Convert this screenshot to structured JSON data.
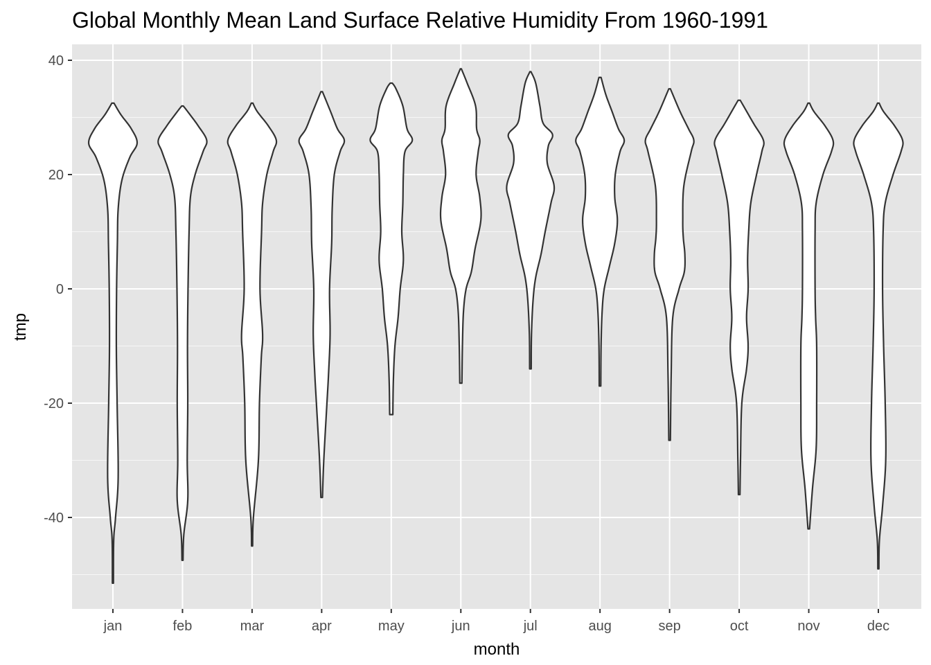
{
  "chart_data": {
    "type": "violin",
    "title": "Global Monthly Mean Land Surface Relative Humidity From 1960-1991",
    "xlabel": "month",
    "ylabel": "tmp",
    "categories": [
      "jan",
      "feb",
      "mar",
      "apr",
      "may",
      "jun",
      "jul",
      "aug",
      "sep",
      "oct",
      "nov",
      "dec"
    ],
    "ylim": [
      -55,
      40
    ],
    "yticks": [
      -40,
      -20,
      0,
      20,
      40
    ],
    "grid": true,
    "background": "#e5e5e5",
    "violin_fill": "#ffffff",
    "violin_outline": "#333333",
    "violins": [
      {
        "month": "jan",
        "min": -51.5,
        "max": 32.5,
        "widths": [
          [
            -51.5,
            0.02
          ],
          [
            -44,
            0.03
          ],
          [
            -40,
            0.1
          ],
          [
            -33,
            0.2
          ],
          [
            -20,
            0.16
          ],
          [
            -10,
            0.13
          ],
          [
            0,
            0.14
          ],
          [
            8,
            0.17
          ],
          [
            14,
            0.2
          ],
          [
            19,
            0.34
          ],
          [
            23,
            0.64
          ],
          [
            25.5,
            0.92
          ],
          [
            28,
            0.7
          ],
          [
            30.5,
            0.3
          ],
          [
            32.5,
            0.04
          ]
        ]
      },
      {
        "month": "feb",
        "min": -47.5,
        "max": 32,
        "widths": [
          [
            -47.5,
            0.02
          ],
          [
            -43,
            0.05
          ],
          [
            -37,
            0.2
          ],
          [
            -30,
            0.18
          ],
          [
            -20,
            0.2
          ],
          [
            -10,
            0.19
          ],
          [
            0,
            0.21
          ],
          [
            10,
            0.25
          ],
          [
            16,
            0.3
          ],
          [
            20,
            0.48
          ],
          [
            24,
            0.78
          ],
          [
            26,
            0.92
          ],
          [
            28.5,
            0.6
          ],
          [
            31,
            0.2
          ],
          [
            32,
            0.03
          ]
        ]
      },
      {
        "month": "mar",
        "min": -45,
        "max": 32.5,
        "widths": [
          [
            -45,
            0.02
          ],
          [
            -40,
            0.05
          ],
          [
            -30,
            0.24
          ],
          [
            -20,
            0.28
          ],
          [
            -12,
            0.35
          ],
          [
            -8,
            0.4
          ],
          [
            0,
            0.3
          ],
          [
            10,
            0.36
          ],
          [
            15,
            0.4
          ],
          [
            20,
            0.56
          ],
          [
            24,
            0.8
          ],
          [
            26,
            0.92
          ],
          [
            28.5,
            0.62
          ],
          [
            31,
            0.2
          ],
          [
            32.5,
            0.03
          ]
        ]
      },
      {
        "month": "apr",
        "min": -36.5,
        "max": 34.5,
        "widths": [
          [
            -36.5,
            0.03
          ],
          [
            -30,
            0.08
          ],
          [
            -20,
            0.2
          ],
          [
            -15,
            0.26
          ],
          [
            -8,
            0.32
          ],
          [
            0,
            0.3
          ],
          [
            8,
            0.38
          ],
          [
            14,
            0.4
          ],
          [
            20,
            0.48
          ],
          [
            24,
            0.7
          ],
          [
            26,
            0.86
          ],
          [
            28,
            0.6
          ],
          [
            31,
            0.34
          ],
          [
            34.5,
            0.03
          ]
        ]
      },
      {
        "month": "may",
        "min": -22,
        "max": 36,
        "widths": [
          [
            -22,
            0.06
          ],
          [
            -16,
            0.08
          ],
          [
            -10,
            0.14
          ],
          [
            -5,
            0.26
          ],
          [
            0,
            0.34
          ],
          [
            5,
            0.46
          ],
          [
            10,
            0.4
          ],
          [
            15,
            0.44
          ],
          [
            20,
            0.46
          ],
          [
            24,
            0.52
          ],
          [
            26,
            0.8
          ],
          [
            28,
            0.6
          ],
          [
            32,
            0.44
          ],
          [
            35,
            0.18
          ],
          [
            36,
            0.04
          ]
        ]
      },
      {
        "month": "jun",
        "min": -16.5,
        "max": 38.5,
        "widths": [
          [
            -16.5,
            0.04
          ],
          [
            -10,
            0.06
          ],
          [
            -4,
            0.1
          ],
          [
            0,
            0.2
          ],
          [
            3,
            0.4
          ],
          [
            7,
            0.54
          ],
          [
            12,
            0.76
          ],
          [
            16,
            0.72
          ],
          [
            20,
            0.58
          ],
          [
            24,
            0.66
          ],
          [
            26,
            0.72
          ],
          [
            28,
            0.6
          ],
          [
            32,
            0.56
          ],
          [
            36,
            0.24
          ],
          [
            38.5,
            0.02
          ]
        ]
      },
      {
        "month": "jul",
        "min": -14,
        "max": 38,
        "widths": [
          [
            -14,
            0.03
          ],
          [
            -8,
            0.04
          ],
          [
            -2,
            0.1
          ],
          [
            2,
            0.2
          ],
          [
            6,
            0.4
          ],
          [
            10,
            0.56
          ],
          [
            15,
            0.78
          ],
          [
            18,
            0.9
          ],
          [
            22,
            0.64
          ],
          [
            25,
            0.68
          ],
          [
            27,
            0.84
          ],
          [
            29,
            0.48
          ],
          [
            32,
            0.36
          ],
          [
            36,
            0.2
          ],
          [
            38,
            0.02
          ]
        ]
      },
      {
        "month": "aug",
        "min": -17,
        "max": 37,
        "widths": [
          [
            -17,
            0.03
          ],
          [
            -10,
            0.04
          ],
          [
            -4,
            0.08
          ],
          [
            0,
            0.16
          ],
          [
            4,
            0.36
          ],
          [
            8,
            0.56
          ],
          [
            12,
            0.66
          ],
          [
            16,
            0.56
          ],
          [
            20,
            0.58
          ],
          [
            24,
            0.76
          ],
          [
            26,
            0.92
          ],
          [
            28,
            0.7
          ],
          [
            31,
            0.46
          ],
          [
            34,
            0.22
          ],
          [
            37,
            0.04
          ]
        ]
      },
      {
        "month": "sep",
        "min": -26.5,
        "max": 35,
        "widths": [
          [
            -26.5,
            0.03
          ],
          [
            -15,
            0.06
          ],
          [
            -5,
            0.12
          ],
          [
            0,
            0.36
          ],
          [
            3,
            0.56
          ],
          [
            6,
            0.58
          ],
          [
            9,
            0.52
          ],
          [
            12,
            0.5
          ],
          [
            18,
            0.54
          ],
          [
            24,
            0.82
          ],
          [
            26,
            0.92
          ],
          [
            28,
            0.72
          ],
          [
            31,
            0.4
          ],
          [
            35,
            0.03
          ]
        ]
      },
      {
        "month": "oct",
        "min": -36,
        "max": 33,
        "widths": [
          [
            -36,
            0.03
          ],
          [
            -30,
            0.05
          ],
          [
            -20,
            0.1
          ],
          [
            -14,
            0.28
          ],
          [
            -10,
            0.34
          ],
          [
            -5,
            0.28
          ],
          [
            0,
            0.34
          ],
          [
            5,
            0.32
          ],
          [
            10,
            0.36
          ],
          [
            15,
            0.44
          ],
          [
            20,
            0.66
          ],
          [
            24,
            0.86
          ],
          [
            26,
            0.92
          ],
          [
            29,
            0.54
          ],
          [
            33,
            0.04
          ]
        ]
      },
      {
        "month": "nov",
        "min": -42,
        "max": 32.5,
        "widths": [
          [
            -42,
            0.03
          ],
          [
            -35,
            0.14
          ],
          [
            -28,
            0.28
          ],
          [
            -20,
            0.3
          ],
          [
            -10,
            0.3
          ],
          [
            -5,
            0.26
          ],
          [
            0,
            0.24
          ],
          [
            10,
            0.24
          ],
          [
            15,
            0.28
          ],
          [
            20,
            0.54
          ],
          [
            24,
            0.86
          ],
          [
            26,
            0.92
          ],
          [
            28.5,
            0.62
          ],
          [
            31,
            0.2
          ],
          [
            32.5,
            0.03
          ]
        ]
      },
      {
        "month": "dec",
        "min": -49,
        "max": 32.5,
        "widths": [
          [
            -49,
            0.02
          ],
          [
            -44,
            0.04
          ],
          [
            -38,
            0.16
          ],
          [
            -30,
            0.28
          ],
          [
            -20,
            0.26
          ],
          [
            -10,
            0.2
          ],
          [
            0,
            0.16
          ],
          [
            10,
            0.18
          ],
          [
            15,
            0.26
          ],
          [
            20,
            0.56
          ],
          [
            24,
            0.86
          ],
          [
            26,
            0.92
          ],
          [
            28.5,
            0.62
          ],
          [
            31,
            0.2
          ],
          [
            32.5,
            0.03
          ]
        ]
      }
    ]
  }
}
